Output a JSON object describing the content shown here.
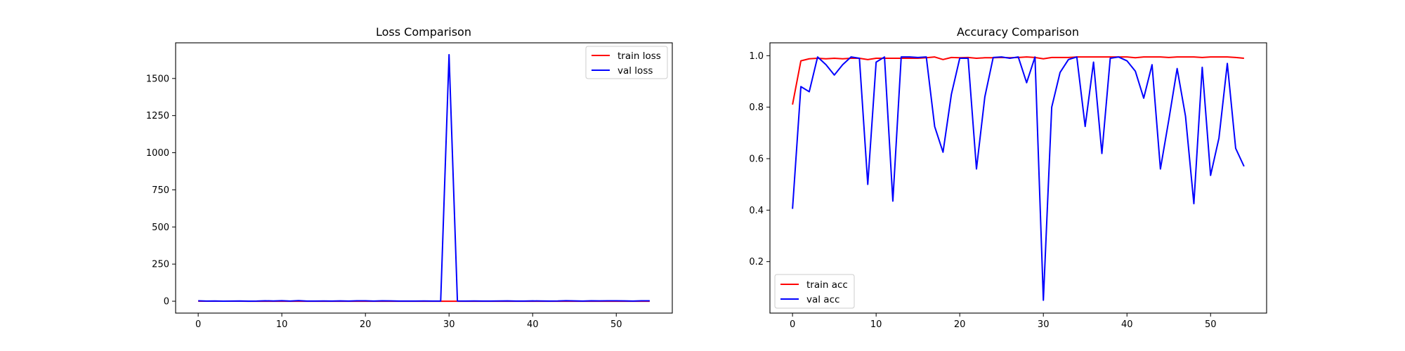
{
  "chart_data": [
    {
      "type": "line",
      "title": "Loss Comparison",
      "xlabel": "",
      "ylabel": "",
      "xlim": [
        -2.7,
        56.7
      ],
      "ylim": [
        -80,
        1740
      ],
      "xticks": [
        0,
        10,
        20,
        30,
        40,
        50
      ],
      "yticks": [
        0,
        250,
        500,
        750,
        1000,
        1250,
        1500
      ],
      "grid": false,
      "legend_position": "upper right",
      "x": [
        0,
        1,
        2,
        3,
        4,
        5,
        6,
        7,
        8,
        9,
        10,
        11,
        12,
        13,
        14,
        15,
        16,
        17,
        18,
        19,
        20,
        21,
        22,
        23,
        24,
        25,
        26,
        27,
        28,
        29,
        30,
        31,
        32,
        33,
        34,
        35,
        36,
        37,
        38,
        39,
        40,
        41,
        42,
        43,
        44,
        45,
        46,
        47,
        48,
        49,
        50,
        51,
        52,
        53,
        54
      ],
      "series": [
        {
          "name": "train loss",
          "color": "#ff0000",
          "values": [
            0.5,
            0.1,
            0.08,
            0.07,
            0.06,
            0.06,
            0.05,
            0.05,
            0.05,
            0.05,
            0.04,
            0.04,
            0.04,
            0.04,
            0.04,
            0.04,
            0.04,
            0.04,
            0.05,
            0.04,
            0.03,
            0.03,
            0.03,
            0.03,
            0.03,
            0.03,
            0.03,
            0.03,
            0.03,
            0.03,
            0.03,
            0.03,
            0.03,
            0.03,
            0.03,
            0.02,
            0.02,
            0.02,
            0.02,
            0.02,
            0.02,
            0.02,
            0.02,
            0.02,
            0.02,
            0.02,
            0.02,
            0.02,
            0.02,
            0.02,
            0.02,
            0.02,
            0.02,
            0.02,
            0.02
          ]
        },
        {
          "name": "val loss",
          "color": "#0000ff",
          "values": [
            3,
            1,
            1.5,
            0.5,
            1,
            1.5,
            0.5,
            1,
            3,
            1.5,
            3.5,
            1,
            4,
            1,
            1,
            1.5,
            1,
            2,
            1,
            2.5,
            2.5,
            1,
            3,
            2,
            1,
            1,
            1,
            1.5,
            1,
            1,
            1660,
            1.5,
            1,
            1.5,
            1,
            1,
            1.5,
            2,
            1,
            1,
            2,
            1.5,
            1,
            1.5,
            3.5,
            2,
            1,
            3,
            2,
            3,
            2.5,
            2,
            1,
            2.5,
            3
          ]
        }
      ]
    },
    {
      "type": "line",
      "title": "Accuracy Comparison",
      "xlabel": "",
      "ylabel": "",
      "xlim": [
        -2.7,
        56.7
      ],
      "ylim": [
        0.0,
        1.05
      ],
      "xticks": [
        0,
        10,
        20,
        30,
        40,
        50
      ],
      "yticks": [
        0.2,
        0.4,
        0.6,
        0.8,
        1.0
      ],
      "ytick_labels": [
        "0.2",
        "0.4",
        "0.6",
        "0.8",
        "1.0"
      ],
      "grid": false,
      "legend_position": "lower left",
      "x": [
        0,
        1,
        2,
        3,
        4,
        5,
        6,
        7,
        8,
        9,
        10,
        11,
        12,
        13,
        14,
        15,
        16,
        17,
        18,
        19,
        20,
        21,
        22,
        23,
        24,
        25,
        26,
        27,
        28,
        29,
        30,
        31,
        32,
        33,
        34,
        35,
        36,
        37,
        38,
        39,
        40,
        41,
        42,
        43,
        44,
        45,
        46,
        47,
        48,
        49,
        50,
        51,
        52,
        53,
        54
      ],
      "series": [
        {
          "name": "train acc",
          "color": "#ff0000",
          "values": [
            0.81,
            0.98,
            0.988,
            0.99,
            0.988,
            0.99,
            0.988,
            0.99,
            0.99,
            0.985,
            0.99,
            0.99,
            0.99,
            0.99,
            0.99,
            0.99,
            0.992,
            0.995,
            0.985,
            0.993,
            0.992,
            0.993,
            0.99,
            0.992,
            0.992,
            0.993,
            0.992,
            0.993,
            0.995,
            0.993,
            0.988,
            0.993,
            0.993,
            0.993,
            0.995,
            0.995,
            0.995,
            0.995,
            0.995,
            0.995,
            0.995,
            0.992,
            0.995,
            0.995,
            0.995,
            0.993,
            0.995,
            0.995,
            0.995,
            0.993,
            0.995,
            0.995,
            0.995,
            0.993,
            0.99
          ]
        },
        {
          "name": "val acc",
          "color": "#0000ff",
          "values": [
            0.405,
            0.88,
            0.86,
            0.995,
            0.965,
            0.925,
            0.965,
            0.995,
            0.99,
            0.5,
            0.975,
            0.995,
            0.435,
            0.995,
            0.995,
            0.993,
            0.995,
            0.725,
            0.625,
            0.85,
            0.99,
            0.99,
            0.56,
            0.84,
            0.993,
            0.995,
            0.99,
            0.995,
            0.895,
            0.995,
            0.05,
            0.8,
            0.935,
            0.985,
            0.995,
            0.725,
            0.975,
            0.62,
            0.99,
            0.995,
            0.98,
            0.94,
            0.835,
            0.965,
            0.56,
            0.75,
            0.95,
            0.765,
            0.425,
            0.955,
            0.535,
            0.68,
            0.97,
            0.64,
            0.57
          ]
        }
      ]
    }
  ]
}
